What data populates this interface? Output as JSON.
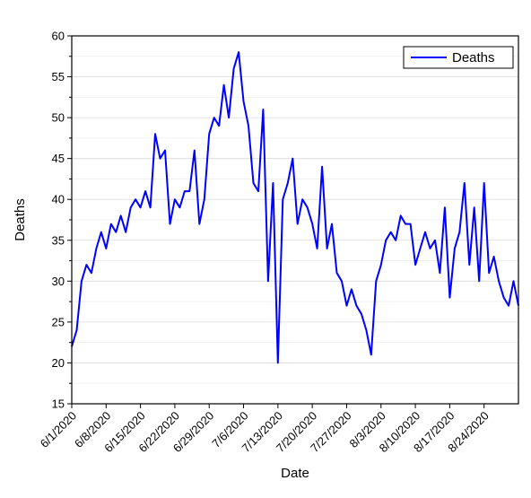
{
  "chart_data": {
    "type": "line",
    "xlabel": "Date",
    "ylabel": "Deaths",
    "ylim": [
      15,
      60
    ],
    "xlim": [
      "6/1/2020",
      "8/31/2020"
    ],
    "y_ticks": [
      15,
      20,
      25,
      30,
      35,
      40,
      45,
      50,
      55,
      60
    ],
    "x_ticks": [
      "6/1/2020",
      "6/8/2020",
      "6/15/2020",
      "6/22/2020",
      "6/29/2020",
      "7/6/2020",
      "7/13/2020",
      "7/20/2020",
      "7/27/2020",
      "8/3/2020",
      "8/10/2020",
      "8/17/2020",
      "8/24/2020"
    ],
    "grid": true,
    "legend_position": "top-right",
    "series": [
      {
        "name": "Deaths",
        "color": "#0000ff",
        "x": [
          "6/1/2020",
          "6/2/2020",
          "6/3/2020",
          "6/4/2020",
          "6/5/2020",
          "6/6/2020",
          "6/7/2020",
          "6/8/2020",
          "6/9/2020",
          "6/10/2020",
          "6/11/2020",
          "6/12/2020",
          "6/13/2020",
          "6/14/2020",
          "6/15/2020",
          "6/16/2020",
          "6/17/2020",
          "6/18/2020",
          "6/19/2020",
          "6/20/2020",
          "6/21/2020",
          "6/22/2020",
          "6/23/2020",
          "6/24/2020",
          "6/25/2020",
          "6/26/2020",
          "6/27/2020",
          "6/28/2020",
          "6/29/2020",
          "6/30/2020",
          "7/1/2020",
          "7/2/2020",
          "7/3/2020",
          "7/4/2020",
          "7/5/2020",
          "7/6/2020",
          "7/7/2020",
          "7/8/2020",
          "7/9/2020",
          "7/10/2020",
          "7/11/2020",
          "7/12/2020",
          "7/13/2020",
          "7/14/2020",
          "7/15/2020",
          "7/16/2020",
          "7/17/2020",
          "7/18/2020",
          "7/19/2020",
          "7/20/2020",
          "7/21/2020",
          "7/22/2020",
          "7/23/2020",
          "7/24/2020",
          "7/25/2020",
          "7/26/2020",
          "7/27/2020",
          "7/28/2020",
          "7/29/2020",
          "7/30/2020",
          "7/31/2020",
          "8/1/2020",
          "8/2/2020",
          "8/3/2020",
          "8/4/2020",
          "8/5/2020",
          "8/6/2020",
          "8/7/2020",
          "8/8/2020",
          "8/9/2020",
          "8/10/2020",
          "8/11/2020",
          "8/12/2020",
          "8/13/2020",
          "8/14/2020",
          "8/15/2020",
          "8/16/2020",
          "8/17/2020",
          "8/18/2020",
          "8/19/2020",
          "8/20/2020",
          "8/21/2020",
          "8/22/2020",
          "8/23/2020",
          "8/24/2020",
          "8/25/2020",
          "8/26/2020",
          "8/27/2020",
          "8/28/2020",
          "8/29/2020",
          "8/30/2020",
          "8/31/2020"
        ],
        "values": [
          22,
          24,
          30,
          32,
          31,
          34,
          36,
          34,
          37,
          36,
          38,
          36,
          39,
          40,
          39,
          41,
          39,
          48,
          45,
          46,
          37,
          40,
          39,
          41,
          41,
          46,
          37,
          40,
          48,
          50,
          49,
          54,
          50,
          56,
          58,
          52,
          49,
          42,
          41,
          51,
          30,
          42,
          20,
          40,
          42,
          45,
          37,
          40,
          39,
          37,
          34,
          44,
          34,
          37,
          31,
          30,
          27,
          29,
          27,
          26,
          24,
          21,
          30,
          32,
          35,
          36,
          35,
          38,
          37,
          37,
          32,
          34,
          36,
          34,
          35,
          31,
          39,
          28,
          34,
          36,
          42,
          32,
          39,
          30,
          42,
          31,
          33,
          30,
          28,
          27,
          30,
          27
        ]
      }
    ]
  }
}
